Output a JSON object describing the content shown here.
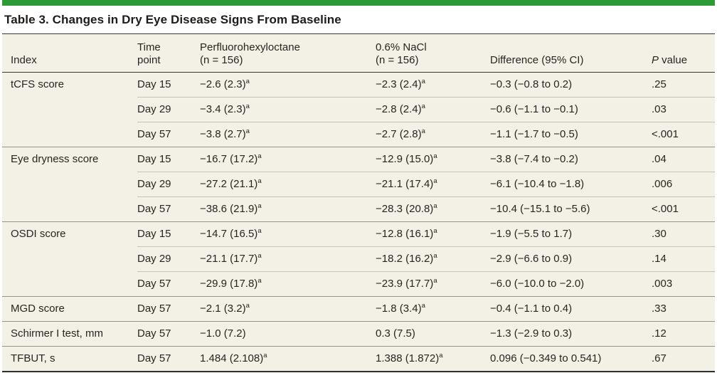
{
  "colors": {
    "accent_green": "#2d9a36",
    "table_background": "#f3f0e5"
  },
  "chart_data": {
    "type": "table",
    "title": "Table 3. Changes in Dry Eye Disease Signs From Baseline",
    "columns": [
      {
        "key": "index",
        "text": "Index"
      },
      {
        "key": "time_point",
        "text": "Time\npoint"
      },
      {
        "key": "perfluorohexyloctane",
        "text": "Perfluorohexyloctane\n(n = 156)"
      },
      {
        "key": "nacl",
        "text": "0.6% NaCl\n(n = 156)"
      },
      {
        "key": "difference",
        "text": "Difference (95% CI)"
      },
      {
        "key": "p_value",
        "text": "P value",
        "italic_first": true
      }
    ],
    "footnote_marker": "a",
    "groups": [
      {
        "index": "tCFS score",
        "rows": [
          {
            "time": "Day 15",
            "pfho": "−2.6 (2.3)^a",
            "nacl": "−2.3 (2.4)^a",
            "diff": "−0.3 (−0.8 to 0.2)",
            "p": ".25"
          },
          {
            "time": "Day 29",
            "pfho": "−3.4 (2.3)^a",
            "nacl": "−2.8 (2.4)^a",
            "diff": "−0.6 (−1.1 to −0.1)",
            "p": ".03"
          },
          {
            "time": "Day 57",
            "pfho": "−3.8 (2.7)^a",
            "nacl": "−2.7 (2.8)^a",
            "diff": "−1.1 (−1.7 to −0.5)",
            "p": "<.001"
          }
        ]
      },
      {
        "index": "Eye dryness score",
        "rows": [
          {
            "time": "Day 15",
            "pfho": "−16.7 (17.2)^a",
            "nacl": "−12.9 (15.0)^a",
            "diff": "−3.8 (−7.4 to −0.2)",
            "p": ".04"
          },
          {
            "time": "Day 29",
            "pfho": "−27.2 (21.1)^a",
            "nacl": "−21.1 (17.4)^a",
            "diff": "−6.1 (−10.4 to −1.8)",
            "p": ".006"
          },
          {
            "time": "Day 57",
            "pfho": "−38.6 (21.9)^a",
            "nacl": "−28.3 (20.8)^a",
            "diff": "−10.4 (−15.1 to −5.6)",
            "p": "<.001"
          }
        ]
      },
      {
        "index": "OSDI score",
        "rows": [
          {
            "time": "Day 15",
            "pfho": "−14.7 (16.5)^a",
            "nacl": "−12.8 (16.1)^a",
            "diff": "−1.9 (−5.5 to 1.7)",
            "p": ".30"
          },
          {
            "time": "Day 29",
            "pfho": "−21.1 (17.7)^a",
            "nacl": "−18.2 (16.2)^a",
            "diff": "−2.9 (−6.6 to 0.9)",
            "p": ".14"
          },
          {
            "time": "Day 57",
            "pfho": "−29.9 (17.8)^a",
            "nacl": "−23.9 (17.7)^a",
            "diff": "−6.0 (−10.0 to −2.0)",
            "p": ".003"
          }
        ]
      },
      {
        "index": "MGD score",
        "rows": [
          {
            "time": "Day 57",
            "pfho": "−2.1 (3.2)^a",
            "nacl": "−1.8 (3.4)^a",
            "diff": "−0.4 (−1.1 to 0.4)",
            "p": ".33"
          }
        ]
      },
      {
        "index": "Schirmer I test, mm",
        "rows": [
          {
            "time": "Day 57",
            "pfho": "−1.0 (7.2)",
            "nacl": "0.3 (7.5)",
            "diff": "−1.3 (−2.9 to 0.3)",
            "p": ".12"
          }
        ]
      },
      {
        "index": "TFBUT, s",
        "rows": [
          {
            "time": "Day 57",
            "pfho": "1.484 (2.108)^a",
            "nacl": "1.388 (1.872)^a",
            "diff": "0.096 (−0.349 to 0.541)",
            "p": ".67"
          }
        ]
      }
    ]
  }
}
